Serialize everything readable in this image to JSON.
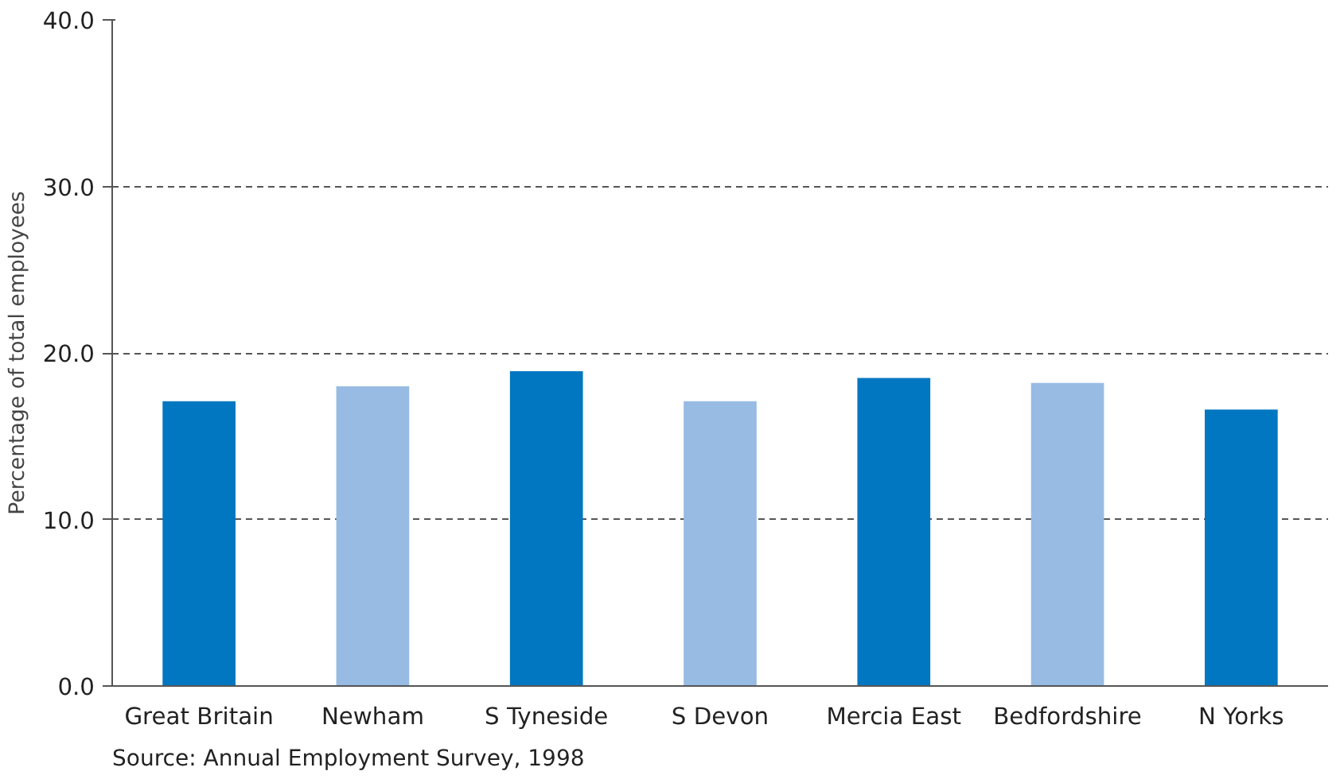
{
  "chart_data": {
    "type": "bar",
    "ylabel": "Percentage of total employees",
    "categories": [
      "Great Britain",
      "Newham",
      "S Tyneside",
      "S Devon",
      "Mercia East",
      "Bedfordshire",
      "N Yorks"
    ],
    "values": [
      17.1,
      18.0,
      18.9,
      17.1,
      18.5,
      18.2,
      16.6
    ],
    "colors": [
      "#0077c0",
      "#97bbe3",
      "#0077c0",
      "#97bbe3",
      "#0077c0",
      "#97bbe3",
      "#0077c0"
    ],
    "ylim": [
      0,
      40
    ],
    "yticks": [
      {
        "value": 0,
        "label": "0.0"
      },
      {
        "value": 10,
        "label": "10.0"
      },
      {
        "value": 20,
        "label": "20.0"
      },
      {
        "value": 30,
        "label": "30.0"
      },
      {
        "value": 40,
        "label": "40.0"
      }
    ],
    "grid": "y",
    "annotations": [
      "Source: Annual Employment Survey, 1998"
    ]
  }
}
